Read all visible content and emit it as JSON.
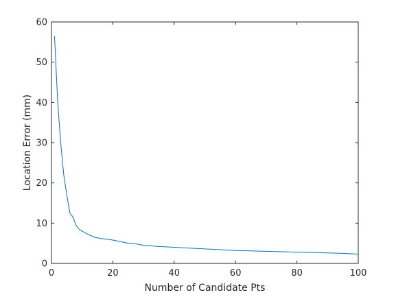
{
  "chart_data": {
    "type": "line",
    "title": "",
    "xlabel": "Number of Candidate Pts",
    "ylabel": "Location Error (mm)",
    "xlim": [
      0,
      100
    ],
    "ylim": [
      0,
      60
    ],
    "xticks": [
      0,
      20,
      40,
      60,
      80,
      100
    ],
    "yticks": [
      0,
      10,
      20,
      30,
      40,
      50,
      60
    ],
    "xtick_labels": [
      "0",
      "20",
      "40",
      "60",
      "80",
      "100"
    ],
    "ytick_labels": [
      "0",
      "10",
      "20",
      "30",
      "40",
      "50",
      "60"
    ],
    "grid": false,
    "legend": "none",
    "line_color": "#0072BD",
    "series": [
      {
        "x": [
          1,
          2,
          3,
          4,
          5,
          6,
          7,
          8,
          9,
          10,
          12,
          14,
          16,
          18,
          20,
          22,
          25,
          28,
          30,
          35,
          40,
          45,
          50,
          55,
          60,
          65,
          70,
          75,
          80,
          85,
          90,
          95,
          100
        ],
        "values": [
          56.5,
          40.5,
          30.0,
          22.0,
          17.0,
          12.5,
          11.5,
          9.5,
          8.5,
          8.0,
          7.2,
          6.5,
          6.2,
          6.0,
          5.8,
          5.5,
          5.0,
          4.8,
          4.5,
          4.2,
          4.0,
          3.8,
          3.6,
          3.4,
          3.2,
          3.1,
          3.0,
          2.9,
          2.8,
          2.7,
          2.6,
          2.5,
          2.3
        ]
      }
    ]
  }
}
